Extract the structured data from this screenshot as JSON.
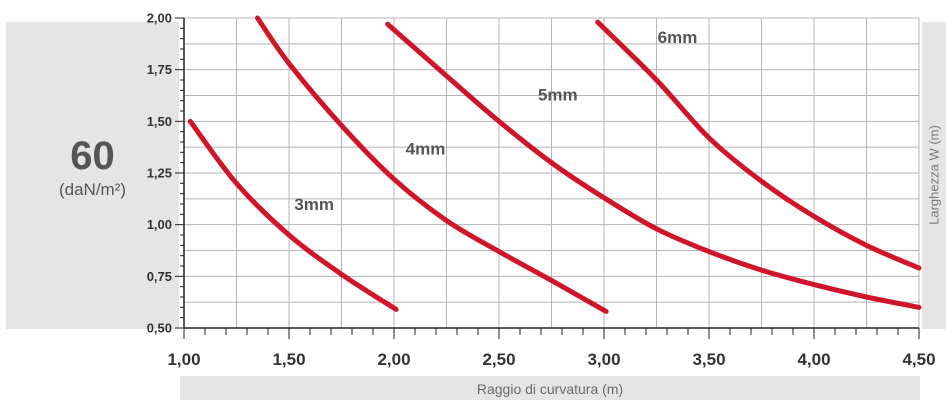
{
  "left_panel": {
    "value": "60",
    "unit": "(daN/m²)"
  },
  "chart_data": {
    "type": "line",
    "xlabel": "Raggio di curvatura (m)",
    "ylabel": "Larghezza W (m)",
    "xlim": [
      1.0,
      4.5
    ],
    "ylim": [
      0.5,
      2.0
    ],
    "x_ticks": [
      "1,00",
      "1,50",
      "2,00",
      "2,50",
      "3,00",
      "3,50",
      "4,00",
      "4,50"
    ],
    "y_ticks": [
      "2,00",
      "1,75",
      "1,50",
      "1,25",
      "1,00",
      "0,75",
      "0,50"
    ],
    "grid": true,
    "line_color": "#d0152b",
    "series": [
      {
        "name": "3mm",
        "x": [
          1.03,
          1.25,
          1.5,
          1.75,
          2.01
        ],
        "y": [
          1.5,
          1.2,
          0.95,
          0.76,
          0.59
        ]
      },
      {
        "name": "4mm",
        "x": [
          1.35,
          1.5,
          1.75,
          2.0,
          2.25,
          2.5,
          2.75,
          3.01
        ],
        "y": [
          2.0,
          1.78,
          1.48,
          1.22,
          1.02,
          0.87,
          0.73,
          0.58
        ]
      },
      {
        "name": "5mm",
        "x": [
          1.97,
          2.25,
          2.5,
          2.75,
          3.0,
          3.25,
          3.5,
          3.75,
          4.0,
          4.25,
          4.5
        ],
        "y": [
          1.97,
          1.72,
          1.5,
          1.3,
          1.13,
          0.98,
          0.87,
          0.78,
          0.71,
          0.65,
          0.6
        ]
      },
      {
        "name": "6mm",
        "x": [
          2.97,
          3.25,
          3.5,
          3.75,
          4.0,
          4.25,
          4.5
        ],
        "y": [
          1.98,
          1.7,
          1.42,
          1.21,
          1.04,
          0.9,
          0.79
        ]
      }
    ]
  }
}
